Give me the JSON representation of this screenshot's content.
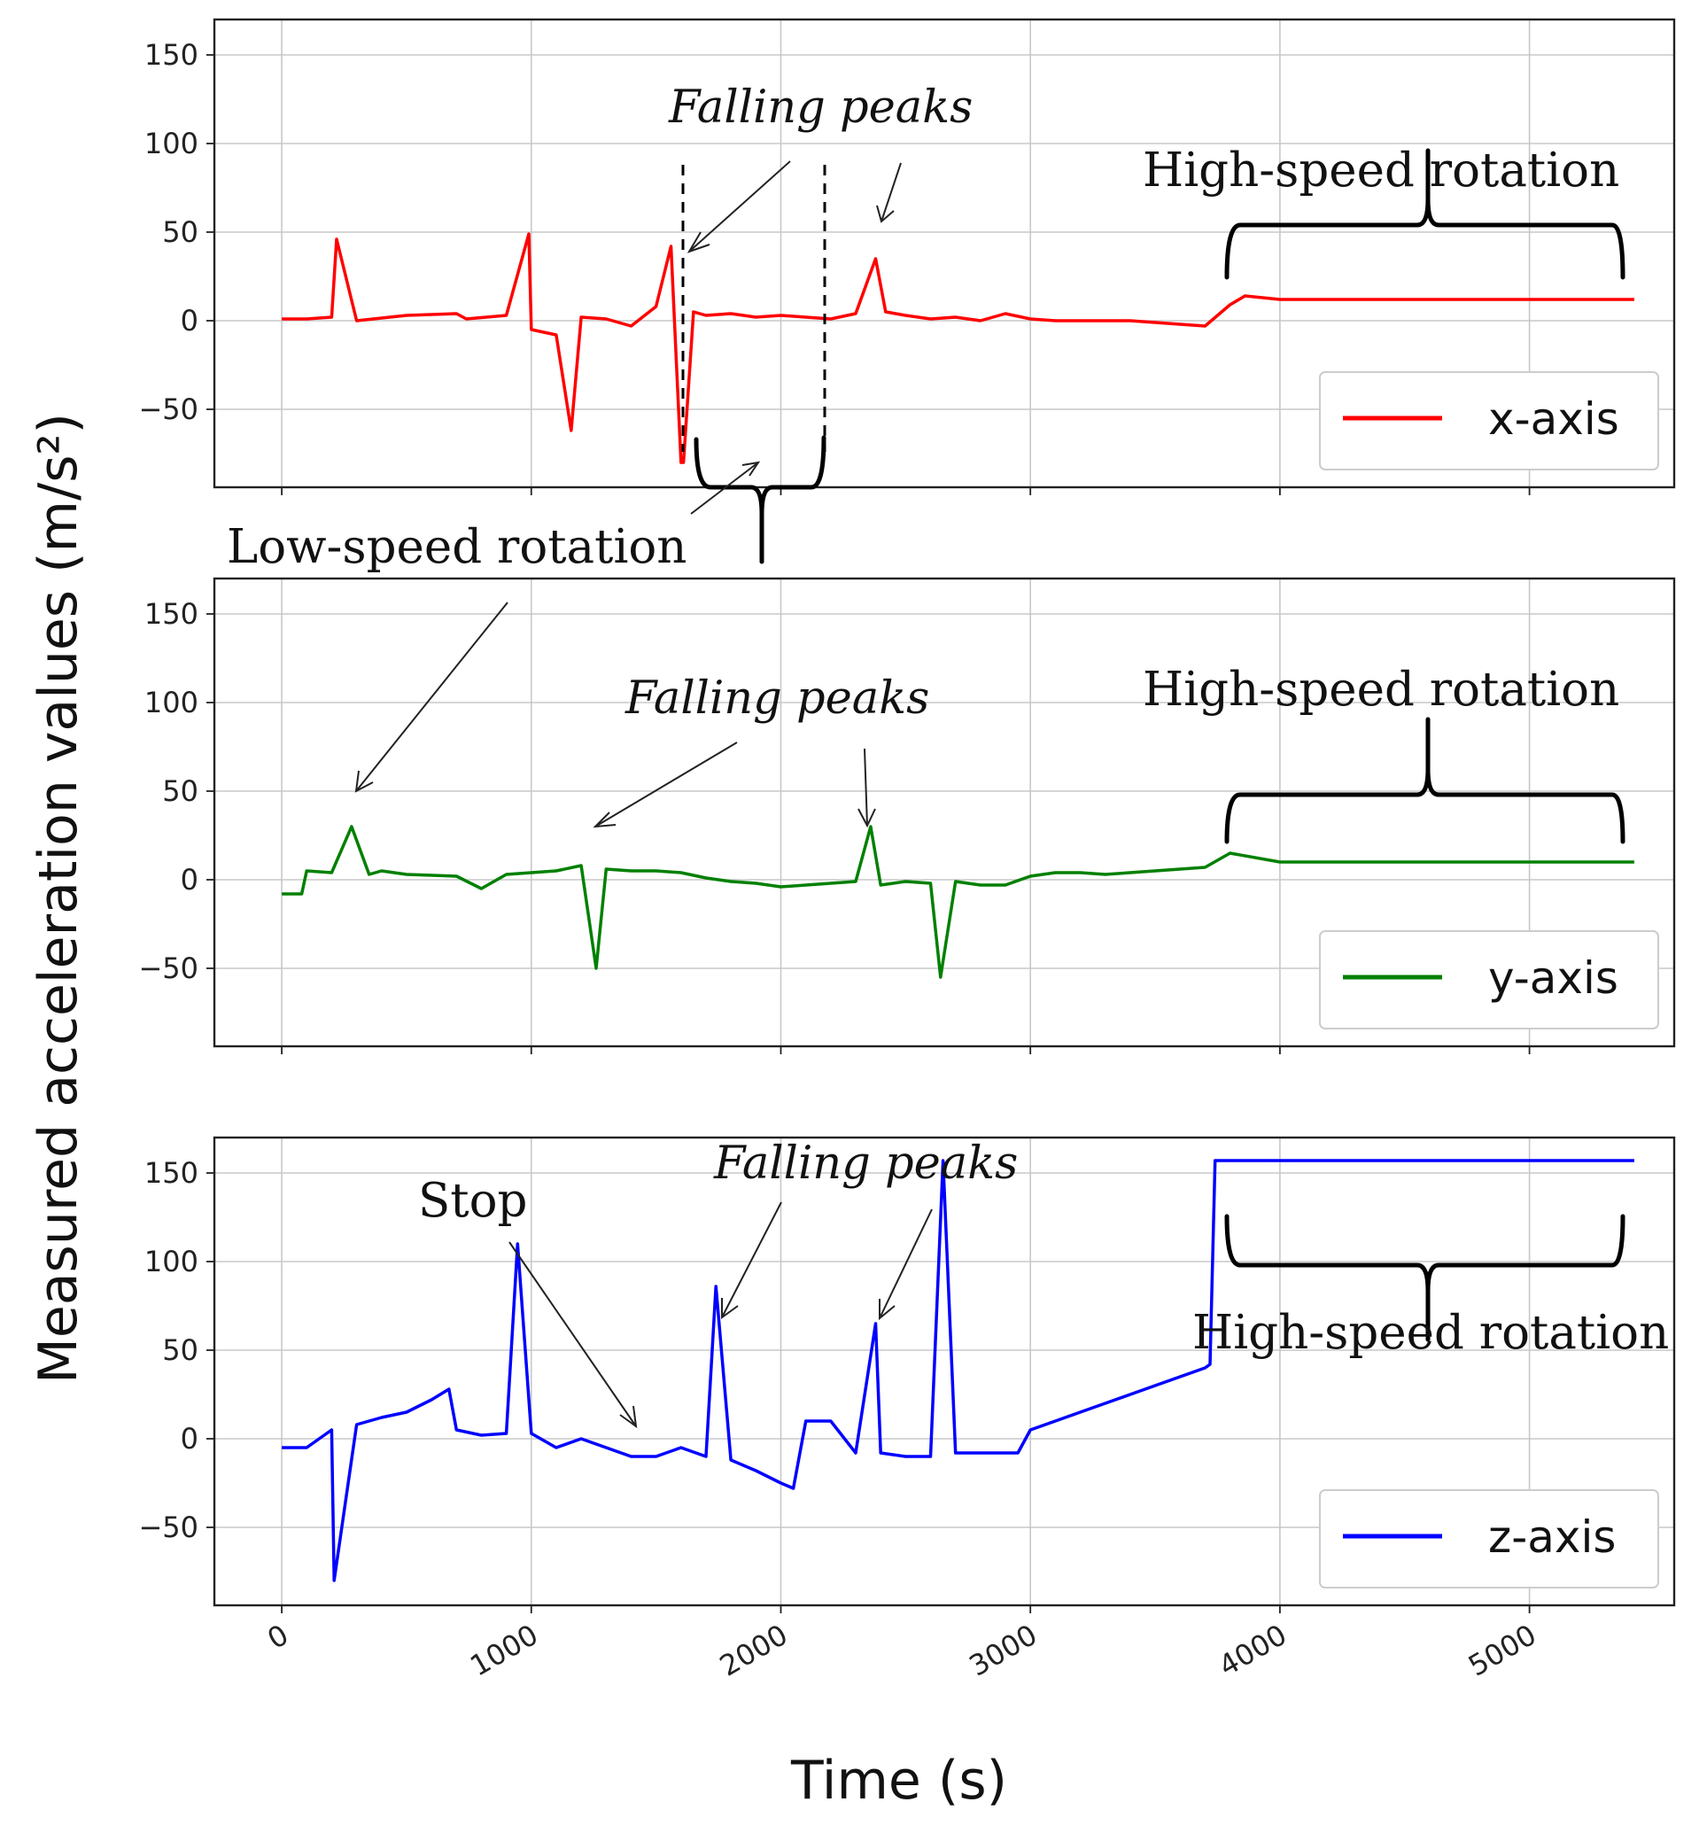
{
  "figure": {
    "ylabel": "Measured acceleration values (m/s²)",
    "xlabel": "Time (s)"
  },
  "chart_data": [
    {
      "type": "line",
      "legend": "x-axis",
      "color": "#ff0000",
      "xlim": [
        -270,
        5580
      ],
      "ylim": [
        -94,
        170
      ],
      "yticks": [
        -50,
        0,
        50,
        100,
        150
      ],
      "xticks": [
        0,
        1000,
        2000,
        3000,
        4000,
        5000
      ],
      "grid": true,
      "legend_position": "bottom-right",
      "series": [
        {
          "name": "x-axis",
          "x": [
            0,
            100,
            200,
            220,
            300,
            500,
            700,
            740,
            900,
            990,
            1000,
            1100,
            1160,
            1200,
            1300,
            1400,
            1500,
            1560,
            1600,
            1610,
            1650,
            1700,
            1800,
            1900,
            2000,
            2100,
            2200,
            2300,
            2380,
            2420,
            2500,
            2600,
            2700,
            2800,
            2900,
            3000,
            3100,
            3200,
            3300,
            3400,
            3500,
            3600,
            3700,
            3800,
            3860,
            4000,
            4500,
            5000,
            5420
          ],
          "y": [
            1,
            1,
            2,
            46,
            0,
            3,
            4,
            1,
            3,
            49,
            -5,
            -8,
            -62,
            2,
            1,
            -3,
            8,
            42,
            -80,
            -80,
            5,
            3,
            4,
            2,
            3,
            2,
            1,
            4,
            35,
            5,
            3,
            1,
            2,
            0,
            4,
            1,
            0,
            0,
            0,
            0,
            -1,
            -2,
            -3,
            9,
            14,
            12,
            12,
            12,
            12
          ]
        }
      ],
      "annotations": [
        "Falling peaks",
        "High-speed rotation",
        "Low-speed rotation"
      ]
    },
    {
      "type": "line",
      "legend": "y-axis",
      "color": "#008000",
      "xlim": [
        -270,
        5580
      ],
      "ylim": [
        -94,
        170
      ],
      "yticks": [
        -50,
        0,
        50,
        100,
        150
      ],
      "xticks": [
        0,
        1000,
        2000,
        3000,
        4000,
        5000
      ],
      "grid": true,
      "legend_position": "bottom-right",
      "series": [
        {
          "name": "y-axis",
          "x": [
            0,
            80,
            100,
            200,
            280,
            350,
            400,
            500,
            700,
            800,
            900,
            1000,
            1100,
            1200,
            1260,
            1300,
            1400,
            1500,
            1600,
            1700,
            1800,
            1900,
            2000,
            2100,
            2200,
            2300,
            2360,
            2400,
            2500,
            2600,
            2640,
            2700,
            2800,
            2900,
            3000,
            3100,
            3200,
            3300,
            3400,
            3500,
            3600,
            3700,
            3800,
            4000,
            4500,
            5000,
            5420
          ],
          "y": [
            -8,
            -8,
            5,
            4,
            30,
            3,
            5,
            3,
            2,
            -5,
            3,
            4,
            5,
            8,
            -50,
            6,
            5,
            5,
            4,
            1,
            -1,
            -2,
            -4,
            -3,
            -2,
            -1,
            30,
            -3,
            -1,
            -2,
            -55,
            -1,
            -3,
            -3,
            2,
            4,
            4,
            3,
            4,
            5,
            6,
            7,
            15,
            10,
            10,
            10,
            10
          ]
        }
      ],
      "annotations": [
        "Falling peaks",
        "High-speed rotation"
      ]
    },
    {
      "type": "line",
      "legend": "z-axis",
      "color": "#0000ff",
      "xlim": [
        -270,
        5580
      ],
      "ylim": [
        -94,
        170
      ],
      "yticks": [
        -50,
        0,
        50,
        100,
        150
      ],
      "xticks": [
        0,
        1000,
        2000,
        3000,
        4000,
        5000
      ],
      "grid": true,
      "legend_position": "bottom-right",
      "series": [
        {
          "name": "z-axis",
          "x": [
            0,
            100,
            200,
            210,
            300,
            400,
            500,
            600,
            670,
            700,
            800,
            900,
            945,
            1000,
            1100,
            1200,
            1300,
            1400,
            1500,
            1600,
            1700,
            1740,
            1800,
            1900,
            2000,
            2050,
            2100,
            2200,
            2300,
            2380,
            2400,
            2500,
            2600,
            2650,
            2700,
            2800,
            2900,
            2950,
            3000,
            3100,
            3200,
            3300,
            3400,
            3500,
            3600,
            3700,
            3720,
            3740,
            3800,
            4000,
            4500,
            5000,
            5420
          ],
          "y": [
            -5,
            -5,
            5,
            -80,
            8,
            12,
            15,
            22,
            28,
            5,
            2,
            3,
            110,
            3,
            -5,
            0,
            -5,
            -10,
            -10,
            -5,
            -10,
            86,
            -12,
            -18,
            -25,
            -28,
            10,
            10,
            -8,
            65,
            -8,
            -10,
            -10,
            157,
            -8,
            -8,
            -8,
            -8,
            5,
            10,
            15,
            20,
            25,
            30,
            35,
            40,
            42,
            157,
            157,
            157,
            157,
            157,
            157
          ]
        }
      ],
      "annotations": [
        "Stop",
        "Falling peaks",
        "High-speed rotation"
      ]
    }
  ]
}
